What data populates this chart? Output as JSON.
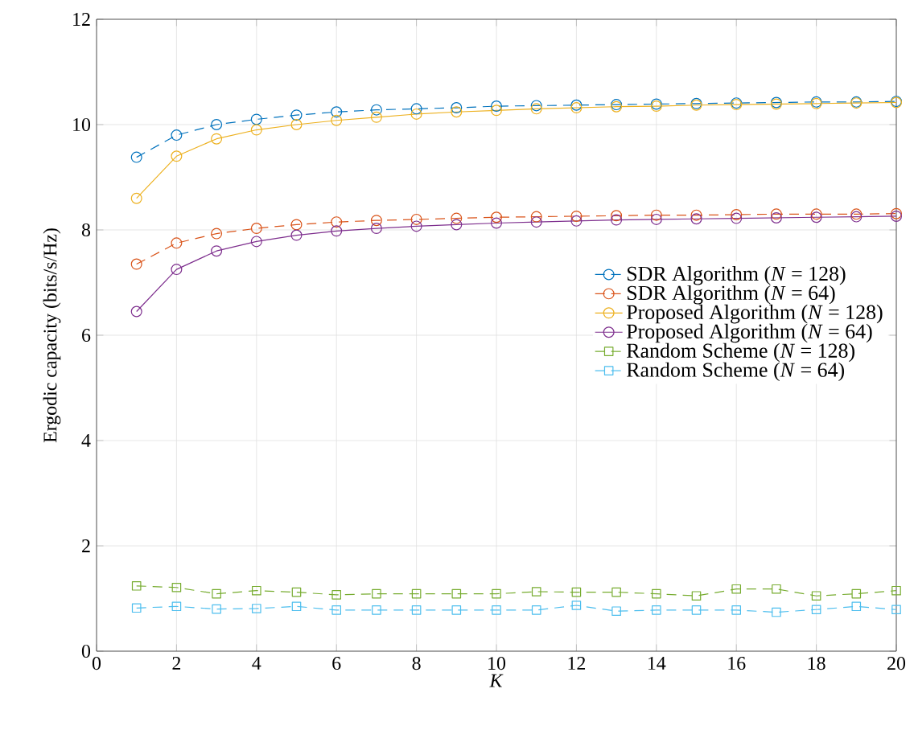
{
  "chart_data": {
    "type": "line",
    "xlabel": "*K*",
    "ylabel": "Ergodic capacity (bits/s/Hz)",
    "x": [
      1,
      2,
      3,
      4,
      5,
      6,
      7,
      8,
      9,
      10,
      11,
      12,
      13,
      14,
      15,
      16,
      17,
      18,
      19,
      20
    ],
    "xlim": [
      0,
      20
    ],
    "xticks": [
      0,
      2,
      4,
      6,
      8,
      10,
      12,
      14,
      16,
      18,
      20
    ],
    "ylim": [
      0,
      12
    ],
    "yticks": [
      0,
      2,
      4,
      6,
      8,
      10,
      12
    ],
    "grid": true,
    "legend": "right",
    "marker": "circle",
    "series": [
      {
        "name": "SDR Algorithm (*N* = 128)",
        "color": "#0072bd",
        "line_style": "dashed",
        "values": [
          9.38,
          9.8,
          10.0,
          10.1,
          10.18,
          10.24,
          10.28,
          10.3,
          10.32,
          10.35,
          10.36,
          10.37,
          10.38,
          10.39,
          10.4,
          10.41,
          10.42,
          10.43,
          10.43,
          10.44
        ]
      },
      {
        "name": "SDR Algorithm (*N* = 64)",
        "color": "#d95319",
        "line_style": "dashed",
        "values": [
          7.35,
          7.75,
          7.93,
          8.03,
          8.1,
          8.15,
          8.18,
          8.2,
          8.22,
          8.24,
          8.25,
          8.26,
          8.27,
          8.28,
          8.28,
          8.29,
          8.3,
          8.3,
          8.3,
          8.31
        ]
      },
      {
        "name": "Proposed Algorithm (*N* = 128)",
        "color": "#edb120",
        "line_style": "solid",
        "values": [
          8.6,
          9.4,
          9.73,
          9.9,
          10.0,
          10.08,
          10.14,
          10.2,
          10.24,
          10.27,
          10.3,
          10.32,
          10.34,
          10.35,
          10.37,
          10.38,
          10.39,
          10.4,
          10.41,
          10.42
        ]
      },
      {
        "name": "Proposed Algorithm (*N* = 64)",
        "color": "#7e2f8e",
        "line_style": "solid",
        "values": [
          6.45,
          7.25,
          7.6,
          7.78,
          7.9,
          7.98,
          8.03,
          8.07,
          8.1,
          8.13,
          8.15,
          8.17,
          8.19,
          8.2,
          8.21,
          8.22,
          8.23,
          8.24,
          8.25,
          8.26
        ]
      },
      {
        "name": "Random Scheme (*N* = 128)",
        "color": "#77ac30",
        "line_style": "dashed",
        "marker": "square",
        "values": [
          1.24,
          1.21,
          1.09,
          1.15,
          1.12,
          1.07,
          1.09,
          1.09,
          1.09,
          1.09,
          1.13,
          1.12,
          1.12,
          1.09,
          1.05,
          1.18,
          1.18,
          1.05,
          1.09,
          1.15
        ]
      },
      {
        "name": "Random Scheme (*N* = 64)",
        "color": "#4dbeee",
        "line_style": "dashed",
        "marker": "square",
        "values": [
          0.82,
          0.85,
          0.8,
          0.81,
          0.85,
          0.78,
          0.78,
          0.78,
          0.78,
          0.78,
          0.78,
          0.87,
          0.76,
          0.78,
          0.78,
          0.78,
          0.74,
          0.79,
          0.85,
          0.79
        ]
      }
    ]
  }
}
